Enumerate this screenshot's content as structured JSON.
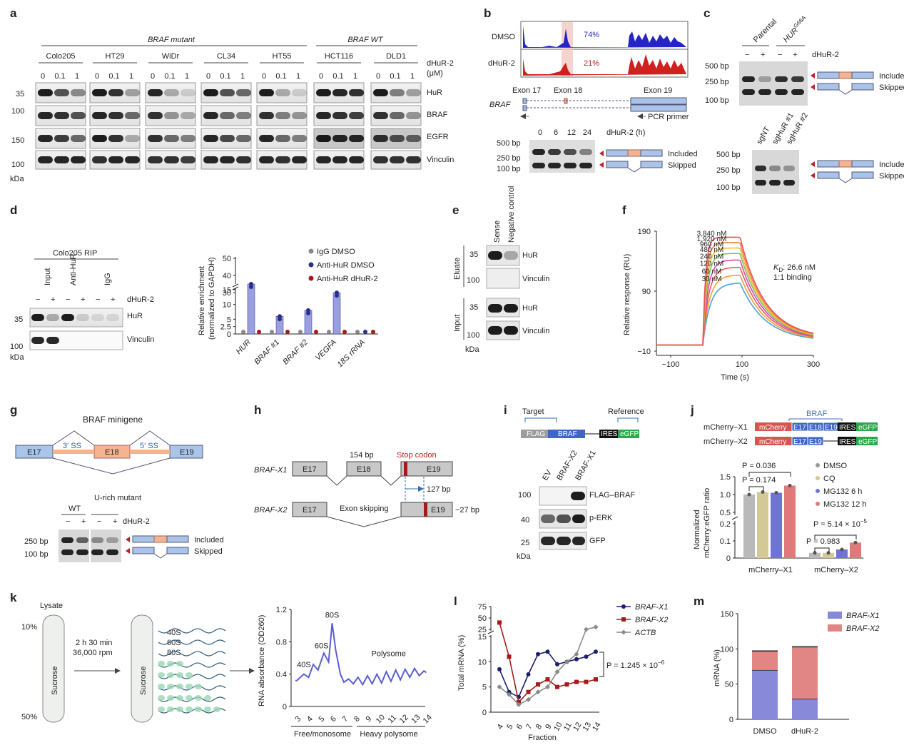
{
  "panel_letters": [
    "a",
    "b",
    "c",
    "d",
    "e",
    "f",
    "g",
    "h",
    "i",
    "j",
    "k",
    "l",
    "m"
  ],
  "a": {
    "group_mutant": "BRAF mutant",
    "group_wt": "BRAF WT",
    "cell_lines": [
      "Colo205",
      "HT29",
      "WiDr",
      "CL34",
      "HT55",
      "HCT116",
      "DLD1"
    ],
    "doses": [
      "0",
      "0.1",
      "1"
    ],
    "treatment": "dHuR-2",
    "unit": "(μM)",
    "markers": [
      "35",
      "100",
      "150",
      "100"
    ],
    "kda": "kDa",
    "proteins": [
      "HuR",
      "BRAF",
      "EGFR",
      "Vinculin"
    ]
  },
  "b": {
    "dmso": "DMSO",
    "dhur": "dHuR-2",
    "pct_dmso": "74%",
    "pct_dhur": "21%",
    "exons": [
      "Exon 17",
      "Exon 18",
      "Exon 19"
    ],
    "gene": "BRAF",
    "primer": "PCR primer",
    "timepoints": [
      "0",
      "6",
      "12",
      "24"
    ],
    "time_label": "dHuR-2 (h)",
    "ladder": [
      "500 bp",
      "250 bp",
      "100 bp"
    ],
    "included": "Included",
    "skipped": "Skipped"
  },
  "c": {
    "lanes_top": [
      "Parental",
      "HUR"
    ],
    "g68a": "G68A",
    "minus": "−",
    "plus": "+",
    "treatment": "dHuR-2",
    "ladder": [
      "500 bp",
      "250 bp",
      "100 bp"
    ],
    "lanes_bottom": [
      "sgNT",
      "sgHuR #1",
      "sgHuR #2"
    ],
    "included": "Included",
    "skipped": "Skipped"
  },
  "d": {
    "rip_title": "Colo205 RIP",
    "lanes": [
      "Input",
      "Anti-HuR",
      "IgG"
    ],
    "treatment": "dHuR-2",
    "markers": [
      "35",
      "100"
    ],
    "kda": "kDa",
    "proteins": [
      "HuR",
      "Vinculin"
    ]
  },
  "chart_data": [
    {
      "panel": "d",
      "type": "bar",
      "ylabel": "Relative enrichment (normalized to GAPDH)",
      "categories": [
        "HUR",
        "BRAF #1",
        "BRAF #2",
        "VEGFA",
        "18S rRNA"
      ],
      "yticks": [
        "0",
        "2.5",
        "5",
        "10",
        "15",
        "30",
        "40",
        "50"
      ],
      "series": [
        {
          "name": "IgG DMSO",
          "color": "#8a8a8a",
          "values": [
            1,
            1,
            1,
            1,
            1
          ]
        },
        {
          "name": "Anti-HuR DMSO",
          "color": "#2b2f8c",
          "values": [
            35,
            6,
            8,
            14,
            1
          ]
        },
        {
          "name": "Anti-HuR dHuR-2",
          "color": "#a31c1c",
          "values": [
            1,
            1,
            1,
            1,
            1
          ]
        }
      ]
    },
    {
      "panel": "f",
      "type": "line",
      "xlabel": "Time (s)",
      "ylabel": "Relative response (RU)",
      "xticks": [
        "−100",
        "100",
        "300"
      ],
      "yticks": [
        "−10",
        "90",
        "190"
      ],
      "xlim": [
        -140,
        300
      ],
      "ylim": [
        -10,
        190
      ],
      "kd_label": "K",
      "kd_sub": "D",
      "kd_value": ": 26.6 nM",
      "binding": "1:1 binding",
      "series": [
        {
          "name": "3,840 nM",
          "color": "#e8505b",
          "plateau": 180
        },
        {
          "name": "1,920 nM",
          "color": "#f07f3c",
          "plateau": 171
        },
        {
          "name": "960 nM",
          "color": "#f2c230",
          "plateau": 162
        },
        {
          "name": "480 nM",
          "color": "#7cc16a",
          "plateau": 153
        },
        {
          "name": "240 nM",
          "color": "#d64ab0",
          "plateau": 142
        },
        {
          "name": "120 nM",
          "color": "#e85a5a",
          "plateau": 130
        },
        {
          "name": "60 nM",
          "color": "#e7a23c",
          "plateau": 117
        },
        {
          "name": "30 nM",
          "color": "#4aa3d8",
          "plateau": 104
        }
      ]
    },
    {
      "panel": "j",
      "type": "bar",
      "ylabel": "Normalized mCherry:eGFP ratio",
      "categories": [
        "mCherry–X1",
        "mCherry–X2"
      ],
      "yticks": [
        "0",
        "0.1",
        "0.2",
        "0.5",
        "1.0",
        "1.5"
      ],
      "series": [
        {
          "name": "DMSO",
          "color": "#b9b9b9",
          "values": [
            1.0,
            0.03
          ]
        },
        {
          "name": "CQ",
          "color": "#d3c896",
          "values": [
            1.07,
            0.03
          ]
        },
        {
          "name": "MG132 6 h",
          "color": "#6f74d4",
          "values": [
            1.05,
            0.05
          ]
        },
        {
          "name": "MG132 12 h",
          "color": "#e07a7a",
          "values": [
            1.25,
            0.09
          ]
        }
      ],
      "pvalues": [
        "P = 0.036",
        "P = 0.174",
        "P = 5.14 × 10",
        "P = 0.983"
      ],
      "p_exp": "−5"
    },
    {
      "panel": "k",
      "type": "line",
      "xlabel": "",
      "ylabel": "RNA absorbance (OD260)",
      "x": [
        "3",
        "4",
        "5",
        "6",
        "7",
        "8",
        "9",
        "10",
        "11",
        "12",
        "13",
        "14"
      ],
      "yticks": [
        "0",
        "0.4",
        "0.8",
        "1.2"
      ],
      "ylim": [
        0,
        1.2
      ],
      "annotations": [
        "40S",
        "60S",
        "80S",
        "Polysome"
      ],
      "x_groups": [
        "Free/monosome",
        "Heavy polysome"
      ]
    },
    {
      "panel": "l",
      "type": "line",
      "xlabel": "Fraction",
      "ylabel": "Total mRNA (%)",
      "x": [
        4,
        5,
        6,
        7,
        8,
        9,
        10,
        11,
        12,
        13,
        14
      ],
      "yticks": [
        "0",
        "5",
        "10",
        "15",
        "25",
        "50",
        "75"
      ],
      "series": [
        {
          "name": "BRAF-X1",
          "color": "#1c1f6e",
          "values": [
            8.5,
            4,
            3,
            7.5,
            11.5,
            12,
            9.5,
            10,
            10.5,
            11,
            12
          ]
        },
        {
          "name": "BRAF-X2",
          "color": "#a31c1c",
          "values": [
            40,
            11,
            2,
            4,
            5.5,
            6.5,
            5,
            5.5,
            6,
            6,
            6.5
          ]
        },
        {
          "name": "ACTB",
          "color": "#8a8a8a",
          "values": [
            5,
            3.5,
            1.5,
            2.5,
            4,
            5,
            8,
            10,
            11.5,
            25,
            30
          ]
        }
      ],
      "pvalue": "P = 1.245 × 10",
      "p_exp": "−6"
    },
    {
      "panel": "m",
      "type": "bar",
      "ylabel": "mRNA (%)",
      "categories": [
        "DMSO",
        "dHuR-2"
      ],
      "yticks": [
        "0",
        "50",
        "100",
        "150"
      ],
      "ylim": [
        0,
        150
      ],
      "series": [
        {
          "name": "BRAF-X1",
          "color": "#8889d9",
          "values": [
            70,
            29
          ]
        },
        {
          "name": "BRAF-X2",
          "color": "#e28585",
          "values": [
            27,
            74
          ]
        }
      ]
    }
  ],
  "e": {
    "lanes": [
      "Sense",
      "Negative control"
    ],
    "groups": [
      "Eluate",
      "Input"
    ],
    "markers": [
      "35",
      "100",
      "35",
      "100"
    ],
    "kda": "kDa",
    "proteins": [
      "HuR",
      "Vinculin",
      "HuR",
      "Vinculin"
    ]
  },
  "g": {
    "title": "BRAF minigene",
    "exons": [
      "E17",
      "E18",
      "E19"
    ],
    "ss3": "3′ SS",
    "ss5": "5′ SS",
    "lanes": [
      "WT",
      "U-rich mutant"
    ],
    "treatment": "dHuR-2",
    "ladder": [
      "250 bp",
      "100 bp"
    ],
    "included": "Included",
    "skipped": "Skipped"
  },
  "h": {
    "x1": "BRAF-X1",
    "x2": "BRAF-X2",
    "exons": [
      "E17",
      "E18",
      "E19"
    ],
    "size": "154 bp",
    "stop": "Stop codon",
    "shift1": "127 bp",
    "skip": "Exon skipping",
    "shift2": "−27 bp"
  },
  "i": {
    "target": "Target",
    "reference": "Reference",
    "boxes": [
      "FLAG",
      "BRAF",
      "IRES",
      "eGFP"
    ],
    "lanes": [
      "EV",
      "BRAF-X2",
      "BRAF-X1"
    ],
    "markers": [
      "100",
      "40",
      "25"
    ],
    "kda": "kDa",
    "proteins": [
      "FLAG–BRAF",
      "p-ERK",
      "GFP"
    ]
  },
  "j": {
    "gene": "BRAF",
    "constructs": [
      "mCherry–X1",
      "mCherry–X2"
    ],
    "boxes": [
      "mCherry",
      "E17",
      "E18",
      "E19",
      "IRES",
      "eGFP"
    ]
  },
  "k": {
    "lysate": "Lysate",
    "pct_top": "10%",
    "pct_bottom": "50%",
    "sucrose": "Sucrose",
    "spin": [
      "2 h 30 min",
      "36,000 rpm"
    ],
    "subunits": [
      "40S",
      "60S",
      "80S"
    ]
  }
}
